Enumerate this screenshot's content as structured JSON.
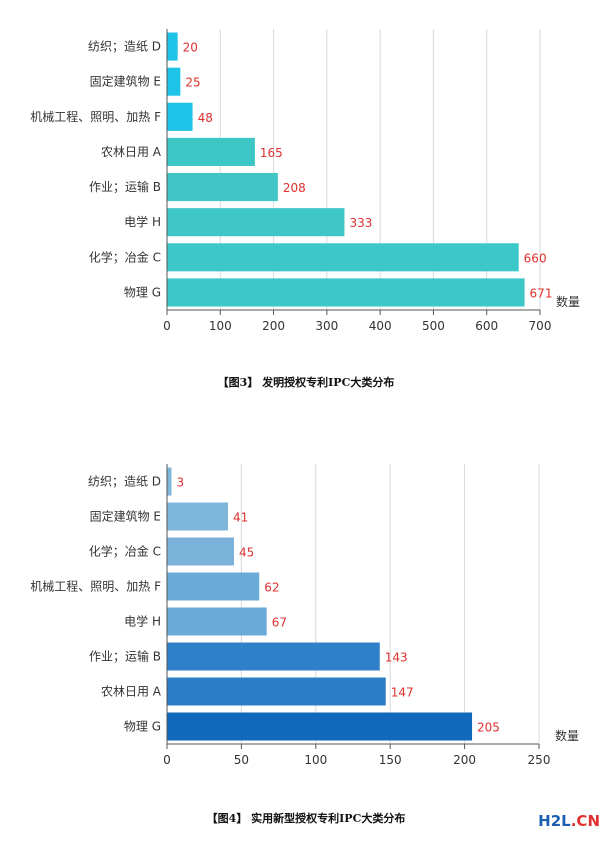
{
  "chart_data": [
    {
      "type": "bar",
      "orientation": "horizontal",
      "categories": [
        "纺织；造纸 D",
        "固定建筑物 E",
        "机械工程、照明、加热 F",
        "农林日用 A",
        "作业；运输 B",
        "电学 H",
        "化学；冶金 C",
        "物理 G"
      ],
      "values": [
        20,
        25,
        48,
        165,
        208,
        333,
        660,
        671
      ],
      "bar_colors": [
        "#1ec4e8",
        "#1ec4e8",
        "#1ec4e8",
        "#3cc6c6",
        "#40c4c4",
        "#3fc6c6",
        "#3cc8c8",
        "#3cc8c8"
      ],
      "xlabel": "数量",
      "xlim": [
        0,
        700
      ],
      "xticks": [
        0,
        100,
        200,
        300,
        400,
        500,
        600,
        700
      ],
      "grid": true,
      "caption": "【图3】 发明授权专利IPC大类分布"
    },
    {
      "type": "bar",
      "orientation": "horizontal",
      "categories": [
        "纺织；造纸 D",
        "固定建筑物 E",
        "化学；冶金 C",
        "机械工程、照明、加热 F",
        "电学 H",
        "作业；运输 B",
        "农林日用 A",
        "物理 G"
      ],
      "values": [
        3,
        41,
        45,
        62,
        67,
        143,
        147,
        205
      ],
      "bar_colors": [
        "#7fb6dc",
        "#7fb6dc",
        "#7ab2da",
        "#6aaad8",
        "#6aaad8",
        "#2f80c8",
        "#2c7cc6",
        "#1069bc"
      ],
      "xlabel": "数量",
      "xlim": [
        0,
        250
      ],
      "xticks": [
        0,
        50,
        100,
        150,
        200,
        250
      ],
      "grid": true,
      "caption": "【图4】 实用新型授权专利IPC大类分布"
    }
  ],
  "watermark": {
    "text_main": "H2L",
    "text_dot": ".CN"
  }
}
